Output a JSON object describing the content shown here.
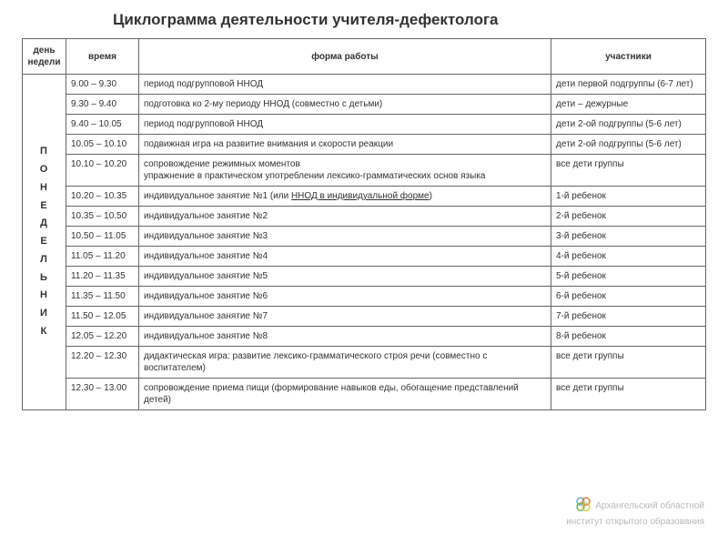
{
  "title": "Циклограмма деятельности учителя-дефектолога",
  "headers": {
    "day": "день недели",
    "time": "время",
    "form": "форма работы",
    "participants": "участники"
  },
  "day_label": "ПОНЕДЕЛЬНИК",
  "rows": [
    {
      "time": "9.00 – 9.30",
      "form": "период подгрупповой ННОД",
      "participants": "дети первой подгруппы (6-7 лет)"
    },
    {
      "time": "9.30 – 9.40",
      "form": "подготовка ко 2-му периоду ННОД (совместно с детьми)",
      "participants": "дети – дежурные"
    },
    {
      "time": "9.40 – 10.05",
      "form": "период подгрупповой ННОД",
      "participants": "дети 2-ой подгруппы (5-6 лет)"
    },
    {
      "time": "10.05 – 10.10",
      "form": "подвижная игра на развитие внимания и скорости реакции",
      "participants": "дети 2-ой подгруппы (5-6 лет)"
    },
    {
      "time": "10.10 – 10.20",
      "form": "сопровождение режимных моментов\nупражнение в практическом употреблении лексико-грамматических основ языка",
      "participants": "все дети группы"
    },
    {
      "time": "10.20 – 10.35",
      "form_prefix": "индивидуальное занятие №1 (или ",
      "form_underlined": "ННОД в индивидуальной форме",
      "form_suffix": ")",
      "participants": "1-й ребенок"
    },
    {
      "time": "10.35 – 10.50",
      "form": "индивидуальное занятие №2",
      "participants": "2-й ребенок"
    },
    {
      "time": "10.50 – 11.05",
      "form": "индивидуальное занятие №3",
      "participants": "3-й ребенок"
    },
    {
      "time": "11.05 – 11.20",
      "form": "индивидуальное занятие №4",
      "participants": "4-й ребенок"
    },
    {
      "time": "11.20 – 11.35",
      "form": "индивидуальное занятие №5",
      "participants": "5-й ребенок"
    },
    {
      "time": "11.35 – 11.50",
      "form": "индивидуальное занятие №6",
      "participants": "6-й ребенок"
    },
    {
      "time": "11.50 – 12.05",
      "form": "индивидуальное занятие №7",
      "participants": "7-й ребенок"
    },
    {
      "time": "12.05 – 12.20",
      "form": "индивидуальное занятие №8",
      "participants": "8-й ребенок"
    },
    {
      "time": "12.20 – 12.30",
      "form": "дидактическая игра: развитие лексико-грамматического строя речи (совместно с воспитателем)",
      "participants": " все дети группы"
    },
    {
      "time": "12.30 – 13.00",
      "form": "сопровождение приема пищи (формирование навыков еды, обогащение представлений детей)",
      "participants": " все дети группы"
    }
  ],
  "watermark": {
    "line1": "Архангельский областной",
    "line2": "институт открытого образования",
    "logo_colors": {
      "c1": "#7aa9d6",
      "c2": "#e07b34",
      "c3": "#6fab4c",
      "c4": "#d9c94b"
    }
  },
  "colors": {
    "border": "#666666",
    "text": "#333333",
    "background": "#ffffff"
  }
}
